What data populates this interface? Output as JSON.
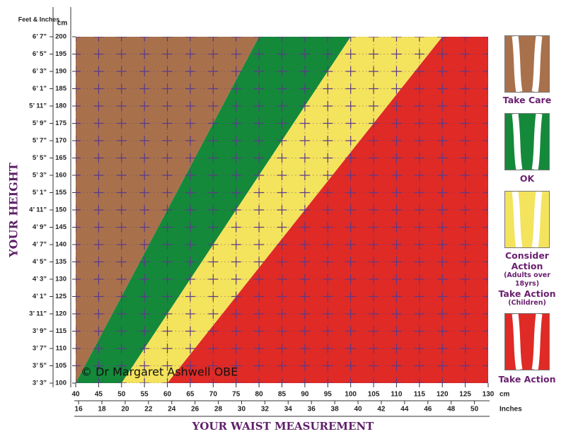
{
  "chart_data": {
    "type": "zone-chart",
    "x_label": "YOUR WAIST MEASUREMENT",
    "y_label": "YOUR HEIGHT",
    "y_unit_label": "cm",
    "y2_unit_label": "Feet & Inches",
    "x_unit_label": "cm",
    "x2_unit_label": "Inches",
    "copyright": "© Dr Margaret Ashwell OBE",
    "xlim": [
      40,
      130
    ],
    "xticks": [
      40,
      45,
      50,
      55,
      60,
      65,
      70,
      75,
      80,
      85,
      90,
      95,
      100,
      105,
      110,
      115,
      120,
      125,
      130
    ],
    "x2lim": [
      15.75,
      51.18
    ],
    "x2ticks": [
      16,
      18,
      20,
      22,
      24,
      26,
      28,
      30,
      32,
      34,
      36,
      38,
      40,
      42,
      44,
      46,
      48,
      50
    ],
    "ylim": [
      100,
      200
    ],
    "yticks": [
      100,
      105,
      110,
      115,
      120,
      125,
      130,
      135,
      140,
      145,
      150,
      155,
      160,
      165,
      170,
      175,
      180,
      185,
      190,
      195,
      200
    ],
    "y2ticks": [
      {
        "value": 100,
        "label": "3’ 3”"
      },
      {
        "value": 105,
        "label": "3’ 5”"
      },
      {
        "value": 110,
        "label": "3’ 7”"
      },
      {
        "value": 115,
        "label": "3’ 9”"
      },
      {
        "value": 120,
        "label": "3’ 11”"
      },
      {
        "value": 125,
        "label": "4’ 1”"
      },
      {
        "value": 130,
        "label": "4’ 3”"
      },
      {
        "value": 135,
        "label": "4’ 5”"
      },
      {
        "value": 140,
        "label": "4’ 7”"
      },
      {
        "value": 145,
        "label": "4’ 9”"
      },
      {
        "value": 150,
        "label": "4’ 11”"
      },
      {
        "value": 155,
        "label": "5’ 1”"
      },
      {
        "value": 160,
        "label": "5’ 3”"
      },
      {
        "value": 165,
        "label": "5’ 5”"
      },
      {
        "value": 170,
        "label": "5’ 7”"
      },
      {
        "value": 175,
        "label": "5’ 9”"
      },
      {
        "value": 180,
        "label": "5’ 11”"
      },
      {
        "value": 185,
        "label": "6’ 1”"
      },
      {
        "value": 190,
        "label": "6’ 3”"
      },
      {
        "value": 195,
        "label": "6’ 5”"
      },
      {
        "value": 200,
        "label": "6’ 7”"
      }
    ],
    "grid": true,
    "grid_color": "#5a3a8a",
    "zones": [
      {
        "name": "Take Care",
        "color": "#a8714c",
        "ratio_max": 0.4
      },
      {
        "name": "OK",
        "color": "#14893a",
        "ratio_min": 0.4,
        "ratio_max": 0.5
      },
      {
        "name": "Consider Action",
        "notes": [
          "(Adults over 18yrs)",
          "Take Action",
          "(Children)"
        ],
        "color": "#f4e35c",
        "ratio_min": 0.5,
        "ratio_max": 0.6
      },
      {
        "name": "Take Action",
        "color": "#df2a26",
        "ratio_min": 0.6
      }
    ]
  }
}
